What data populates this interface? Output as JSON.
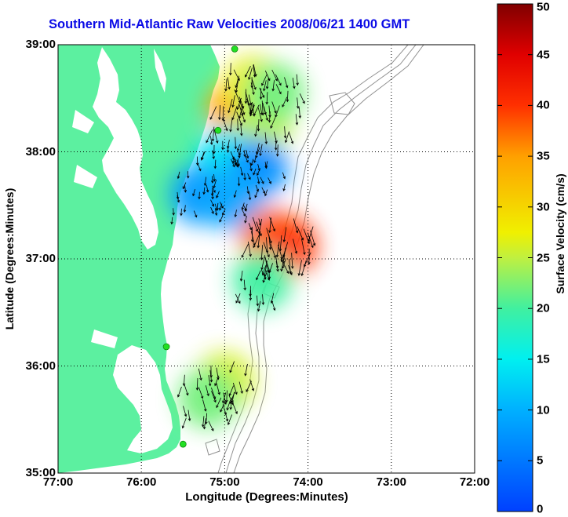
{
  "title": "Southern Mid-Atlantic Raw Velocities 2008/06/21 1400 GMT",
  "x_axis": {
    "label": "Longitude (Degrees:Minutes)",
    "ticks": [
      "77:00",
      "76:00",
      "75:00",
      "74:00",
      "73:00",
      "72:00"
    ],
    "range": [
      -77,
      -72
    ]
  },
  "y_axis": {
    "label": "Latitude (Degrees:Minutes)",
    "ticks": [
      "39:00",
      "38:00",
      "37:00",
      "36:00",
      "35:00"
    ],
    "range": [
      35,
      39
    ]
  },
  "colorbar": {
    "label": "Surface Velocity (cm/s)",
    "ticks": [
      "50",
      "45",
      "40",
      "35",
      "30",
      "25",
      "20",
      "15",
      "10",
      "5",
      "0"
    ],
    "range": [
      0,
      50
    ],
    "colormap": "jet"
  },
  "colors": {
    "land": "#5cf0a0",
    "water": "#ffffff",
    "title": "#0a0ae6",
    "bathymetry": "#909090",
    "station": "#22e022"
  },
  "map_data": {
    "grid": true,
    "stations": [
      {
        "lon": -74.88,
        "lat": 38.96
      },
      {
        "lon": -75.08,
        "lat": 38.2
      },
      {
        "lon": -75.7,
        "lat": 36.18
      },
      {
        "lon": -75.5,
        "lat": 35.27
      }
    ],
    "velocity_patches": [
      {
        "lon": -74.85,
        "lat": 38.4,
        "speed": 35
      },
      {
        "lon": -74.65,
        "lat": 38.62,
        "speed": 27
      },
      {
        "lon": -74.55,
        "lat": 38.25,
        "speed": 25
      },
      {
        "lon": -74.4,
        "lat": 38.55,
        "speed": 22
      },
      {
        "lon": -75.0,
        "lat": 37.95,
        "speed": 14
      },
      {
        "lon": -74.6,
        "lat": 37.85,
        "speed": 7
      },
      {
        "lon": -75.3,
        "lat": 37.6,
        "speed": 8
      },
      {
        "lon": -74.9,
        "lat": 37.55,
        "speed": 9
      },
      {
        "lon": -74.45,
        "lat": 37.2,
        "speed": 37
      },
      {
        "lon": -74.25,
        "lat": 37.12,
        "speed": 40
      },
      {
        "lon": -74.55,
        "lat": 36.8,
        "speed": 20
      },
      {
        "lon": -75.0,
        "lat": 35.85,
        "speed": 26
      },
      {
        "lon": -75.2,
        "lat": 35.7,
        "speed": 22
      }
    ]
  }
}
